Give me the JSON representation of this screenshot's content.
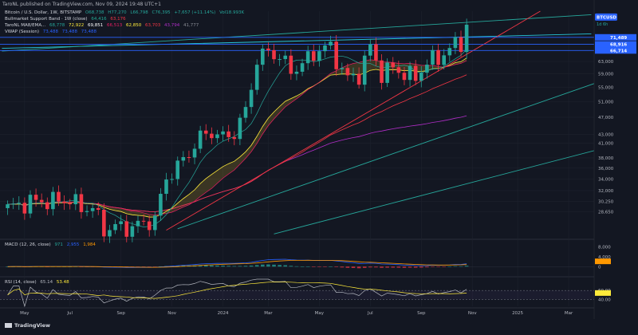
{
  "header": {
    "publisher_line": "TaroNL published on TradingView.com, Nov 09, 2024 19:48 UTC+1"
  },
  "legend": {
    "symbol_line": {
      "label": "Bitcoin / U.S. Dollar, 1W, BITSTAMP",
      "values": [
        "O68,738",
        "H77,270",
        "L66,798",
        "C76,395",
        "+7,657 (+11.14%)",
        "Vol18.993K"
      ]
    },
    "indicators": [
      {
        "label": "Bullmarket Support Band · 1W (close)",
        "values": [
          "64,416",
          "63,176"
        ],
        "colors": [
          "#22ab94",
          "#f23645"
        ]
      },
      {
        "label": "TaroNL MA8/EMA...",
        "values": [
          "68,778",
          "72,922",
          "69,851",
          "66,513",
          "62,850",
          "63,703",
          "43,794",
          "41,777"
        ],
        "colors": [
          "#26a69a",
          "#ffeb3b",
          "#ffffff",
          "#e91e63",
          "#ffeb3b",
          "#f23645",
          "#b02dc7",
          "#8a8d96"
        ]
      },
      {
        "label": "VWAP (Session)",
        "values": [
          "73,488",
          "73,488",
          "73,488"
        ],
        "colors": [
          "#2962ff",
          "#2962ff",
          "#2962ff"
        ]
      }
    ]
  },
  "macd": {
    "label": "MACD (12, 26, close)",
    "values": [
      "971",
      "2,955",
      "1,984"
    ],
    "colors": [
      "#26a69a",
      "#2962ff",
      "#ff9800"
    ]
  },
  "rsi": {
    "label": "RSI (14, close)",
    "values": [
      "65.14",
      "53.48"
    ],
    "colors": [
      "#b2b5be",
      "#ffeb3b"
    ]
  },
  "branding": "TradingView",
  "colors": {
    "background": "#131722",
    "up": "#26a69a",
    "down": "#f23645",
    "grid": "#1e222d",
    "axis_text": "#b2b5be",
    "symbol_tag": "#2962ff"
  },
  "chart_data": {
    "type": "candlestick",
    "symbol_tag": "BTCUSD",
    "countdown": "1d 6h",
    "price_axis": {
      "scale": "log",
      "ticks": [
        "63,000",
        "59,000",
        "55,000",
        "51,000",
        "47,000",
        "43,000",
        "41,000",
        "38,000",
        "36,000",
        "34,000",
        "32,000",
        "30,250",
        "28,650"
      ],
      "tick_values": [
        63000,
        59000,
        55000,
        51000,
        47000,
        43000,
        41000,
        38000,
        36000,
        34000,
        32000,
        30250,
        28650
      ],
      "range": [
        25000,
        82000
      ]
    },
    "price_labels": [
      {
        "text": "71,489",
        "value": 71489
      },
      {
        "text": "68,916",
        "value": 68916
      },
      {
        "text": "66,714",
        "value": 66714
      }
    ],
    "x_axis": {
      "ticks": [
        "May",
        "Jul",
        "Sep",
        "Nov",
        "2024",
        "Mar",
        "May",
        "Jul",
        "Sep",
        "Nov",
        "2025",
        "Mar"
      ],
      "tick_weeks": [
        3,
        11,
        20,
        29,
        38,
        46,
        55,
        64,
        73,
        82,
        90,
        99
      ]
    },
    "weekly_close_anchors": [
      [
        0,
        29200
      ],
      [
        4,
        30200
      ],
      [
        8,
        30300
      ],
      [
        11,
        30500
      ],
      [
        13,
        29200
      ],
      [
        15,
        29300
      ],
      [
        17,
        26100
      ],
      [
        19,
        26500
      ],
      [
        21,
        26300
      ],
      [
        24,
        26900
      ],
      [
        26,
        27600
      ],
      [
        28,
        34200
      ],
      [
        31,
        37500
      ],
      [
        34,
        42300
      ],
      [
        36,
        43600
      ],
      [
        38,
        42200
      ],
      [
        40,
        43400
      ],
      [
        42,
        48500
      ],
      [
        44,
        63500
      ],
      [
        46,
        66500
      ],
      [
        48,
        64500
      ],
      [
        50,
        60000
      ],
      [
        52,
        62200
      ],
      [
        55,
        67200
      ],
      [
        57,
        67800
      ],
      [
        58,
        63500
      ],
      [
        60,
        57500
      ],
      [
        62,
        58800
      ],
      [
        64,
        68000
      ],
      [
        66,
        59000
      ],
      [
        68,
        61000
      ],
      [
        70,
        59100
      ],
      [
        72,
        57800
      ],
      [
        74,
        62900
      ],
      [
        76,
        64000
      ],
      [
        78,
        67500
      ],
      [
        79,
        68500
      ],
      [
        80,
        69500
      ],
      [
        81,
        76395
      ]
    ],
    "macd_axis": {
      "ticks": [
        "8,000",
        "4,000",
        "0"
      ],
      "tick_values": [
        8000,
        4000,
        0
      ],
      "range": [
        -3500,
        10500
      ]
    },
    "rsi_axis": {
      "ticks": [
        "60.00",
        "40.00"
      ],
      "tick_values": [
        60,
        40
      ],
      "range": [
        25,
        85
      ]
    }
  }
}
